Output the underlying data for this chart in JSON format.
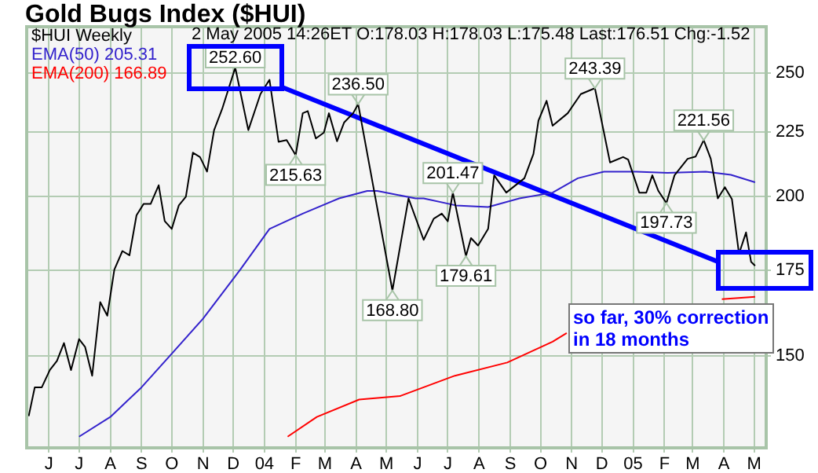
{
  "chart_data": {
    "type": "line",
    "title": "Gold Bugs Index ($HUI)",
    "log": "y",
    "grid": true,
    "legend": "top left",
    "marker": "none",
    "xlim": [
      "2003-05-10",
      "2005-05-13"
    ],
    "ylim": [
      127,
      272
    ],
    "yticks": [
      150,
      175,
      200,
      225,
      250
    ],
    "xticks": [
      {
        "value": "2003-06-01",
        "label": "J"
      },
      {
        "value": "2003-07-01",
        "label": "J"
      },
      {
        "value": "2003-08-01",
        "label": "A"
      },
      {
        "value": "2003-09-01",
        "label": "S"
      },
      {
        "value": "2003-10-01",
        "label": "O"
      },
      {
        "value": "2003-11-01",
        "label": "N"
      },
      {
        "value": "2003-12-01",
        "label": "D"
      },
      {
        "value": "2004-01-01",
        "label": "04"
      },
      {
        "value": "2004-02-01",
        "label": "F"
      },
      {
        "value": "2004-03-01",
        "label": "M"
      },
      {
        "value": "2004-04-01",
        "label": "A"
      },
      {
        "value": "2004-05-01",
        "label": "M"
      },
      {
        "value": "2004-06-01",
        "label": "J"
      },
      {
        "value": "2004-07-01",
        "label": "J"
      },
      {
        "value": "2004-08-01",
        "label": "A"
      },
      {
        "value": "2004-09-01",
        "label": "S"
      },
      {
        "value": "2004-10-01",
        "label": "O"
      },
      {
        "value": "2004-11-01",
        "label": "N"
      },
      {
        "value": "2004-12-01",
        "label": "D"
      },
      {
        "value": "2005-01-01",
        "label": "05"
      },
      {
        "value": "2005-02-01",
        "label": "F"
      },
      {
        "value": "2005-03-01",
        "label": "M"
      },
      {
        "value": "2005-04-01",
        "label": "A"
      },
      {
        "value": "2005-05-01",
        "label": "M"
      }
    ],
    "series": [
      {
        "name": "$HUI Weekly",
        "color": "#000000",
        "x": [
          "2003-05-12",
          "2003-05-18",
          "2003-05-25",
          "2003-06-02",
          "2003-06-09",
          "2003-06-16",
          "2003-06-23",
          "2003-07-01",
          "2003-07-07",
          "2003-07-14",
          "2003-07-22",
          "2003-07-29",
          "2003-08-05",
          "2003-08-13",
          "2003-08-20",
          "2003-08-27",
          "2003-09-03",
          "2003-09-10",
          "2003-09-18",
          "2003-09-24",
          "2003-10-01",
          "2003-10-08",
          "2003-10-15",
          "2003-10-22",
          "2003-10-29",
          "2003-11-05",
          "2003-11-12",
          "2003-11-20",
          "2003-12-03",
          "2003-12-16",
          "2003-12-28",
          "2004-01-06",
          "2004-01-15",
          "2004-01-23",
          "2004-02-01",
          "2004-02-08",
          "2004-02-13",
          "2004-02-21",
          "2004-02-29",
          "2004-03-05",
          "2004-03-13",
          "2004-03-20",
          "2004-03-29",
          "2004-04-03",
          "2004-05-07",
          "2004-05-23",
          "2004-06-07",
          "2004-06-17",
          "2004-06-25",
          "2004-07-01",
          "2004-07-06",
          "2004-07-19",
          "2004-07-24",
          "2004-07-31",
          "2004-08-10",
          "2004-08-16",
          "2004-08-28",
          "2004-09-15",
          "2004-09-24",
          "2004-09-29",
          "2004-10-07",
          "2004-10-13",
          "2004-10-28",
          "2004-11-10",
          "2004-11-24",
          "2004-12-09",
          "2004-12-22",
          "2004-12-27",
          "2005-01-07",
          "2005-01-14",
          "2005-01-20",
          "2005-01-26",
          "2005-02-03",
          "2005-02-11",
          "2005-02-24",
          "2005-03-04",
          "2005-03-12",
          "2005-03-19",
          "2005-03-26",
          "2005-04-02",
          "2005-04-09",
          "2005-04-16",
          "2005-04-23",
          "2005-04-28",
          "2005-05-02"
        ],
        "values": [
          134.5,
          141.7,
          141.7,
          146.2,
          148.6,
          153.5,
          146.2,
          154.6,
          152.4,
          144.7,
          165.3,
          161.3,
          175.3,
          181.3,
          179.9,
          193.4,
          197.4,
          197.4,
          204.2,
          191.4,
          188.7,
          196.9,
          200,
          216.6,
          214.9,
          209.3,
          225.6,
          234.4,
          252.6,
          225.6,
          240.8,
          247.1,
          220.9,
          221.6,
          215.63,
          232.6,
          233.5,
          222.2,
          224.6,
          232.6,
          221.1,
          228.7,
          232.6,
          236.5,
          168.8,
          199.4,
          185,
          192.2,
          194,
          191.3,
          201.47,
          179.61,
          185.6,
          183.1,
          188.7,
          207.9,
          201.5,
          206.8,
          216.1,
          229.6,
          237.9,
          227.4,
          232.6,
          240.8,
          243.39,
          212.8,
          214.9,
          213.9,
          201.5,
          201.5,
          207.9,
          202.1,
          197.73,
          207.9,
          214.2,
          215.1,
          221.56,
          214.2,
          199.4,
          203.5,
          199.1,
          180.4,
          187.5,
          177.8,
          176.51
        ]
      },
      {
        "name": "EMA(50) 205.31",
        "color": "#3322cc",
        "x": [
          "2003-07-01",
          "2003-08-01",
          "2003-09-01",
          "2003-10-01",
          "2003-11-01",
          "2003-12-08",
          "2004-01-06",
          "2004-02-08",
          "2004-03-15",
          "2004-04-12",
          "2004-04-22",
          "2004-05-30",
          "2004-06-07",
          "2004-07-09",
          "2004-08-10",
          "2004-09-10",
          "2004-10-13",
          "2004-11-07",
          "2004-12-03",
          "2005-01-04",
          "2005-02-04",
          "2005-03-14",
          "2005-04-08",
          "2005-05-02"
        ],
        "values": [
          129.6,
          134.3,
          141.7,
          150.6,
          160.4,
          175.3,
          188.7,
          194,
          199.4,
          202.1,
          202.1,
          199.4,
          199.4,
          196.9,
          196.3,
          199.4,
          201.5,
          206.8,
          209.3,
          209.3,
          208.8,
          209.3,
          208.1,
          205.31
        ]
      },
      {
        "name": "EMA(200) 166.89",
        "color": "#ff0000",
        "x": [
          "2004-01-24",
          "2004-02-22",
          "2004-04-04",
          "2004-05-15",
          "2004-07-08",
          "2004-08-29",
          "2004-10-13",
          "2004-10-27",
          "2005-01-15",
          "2005-03-30",
          "2005-05-02"
        ],
        "values": [
          129.6,
          134.3,
          138.6,
          139.5,
          144.7,
          148.2,
          153.9,
          156.3,
          null,
          166.2,
          166.89
        ]
      },
      {
        "type": "line",
        "color": "#0000ff",
        "x": [
          "2004-01-19",
          "2005-03-25"
        ],
        "values": [
          243.7,
          178
        ]
      }
    ],
    "annotations": [
      "2 May 2005 14:26ET O:178.03 H:178.03 L:175.48 Last:176.51 Chg:-1.52",
      "so far, 30% correction in 18 months",
      {
        "text": "252.60",
        "x": "2003-12-03",
        "y": 252.6
      },
      {
        "text": "215.63",
        "x": "2004-02-01",
        "y": 215.63
      },
      {
        "text": "236.50",
        "x": "2004-04-03",
        "y": 236.5
      },
      {
        "text": "168.80",
        "x": "2004-05-07",
        "y": 168.8
      },
      {
        "text": "201.47",
        "x": "2004-07-06",
        "y": 201.47
      },
      {
        "text": "179.61",
        "x": "2004-07-19",
        "y": 179.61
      },
      {
        "text": "243.39",
        "x": "2004-11-24",
        "y": 243.39
      },
      {
        "text": "197.73",
        "x": "2005-02-03",
        "y": 197.73
      },
      {
        "text": "221.56",
        "x": "2005-03-12",
        "y": 221.56
      }
    ]
  }
}
